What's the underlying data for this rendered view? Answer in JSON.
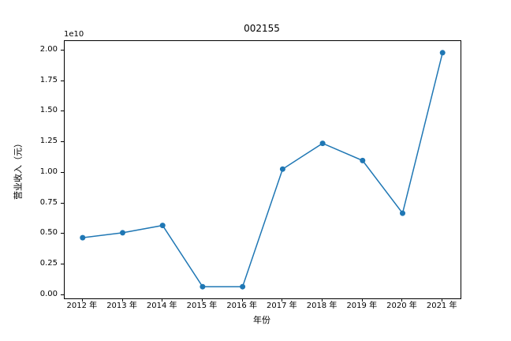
{
  "figure": {
    "background_color": "#ffffff",
    "text_color": "#000000",
    "spine_color": "#000000"
  },
  "chart_data": {
    "type": "line",
    "title": "002155",
    "xlabel": "年份",
    "ylabel": "营业收入（元）",
    "offset_text": "1e10",
    "x": [
      2012,
      2013,
      2014,
      2015,
      2016,
      2017,
      2018,
      2019,
      2020,
      2021
    ],
    "x_tick_labels": [
      "2012 年",
      "2013 年",
      "2014 年",
      "2015 年",
      "2016 年",
      "2017 年",
      "2018 年",
      "2019 年",
      "2020 年",
      "2021 年"
    ],
    "values_1e10": [
      0.47,
      0.51,
      0.57,
      0.07,
      0.07,
      1.03,
      1.24,
      1.1,
      0.67,
      1.98
    ],
    "values_yuan": [
      4700000000,
      5100000000,
      5700000000,
      700000000,
      700000000,
      10300000000,
      12400000000,
      11000000000,
      6700000000,
      19800000000
    ],
    "series": [
      {
        "name": "营业收入",
        "values": [
          0.47,
          0.51,
          0.57,
          0.07,
          0.07,
          1.03,
          1.24,
          1.1,
          0.67,
          1.98
        ]
      }
    ],
    "y_ticks": [
      0.0,
      0.25,
      0.5,
      0.75,
      1.0,
      1.25,
      1.5,
      1.75,
      2.0
    ],
    "y_tick_labels": [
      "0.00",
      "0.25",
      "0.50",
      "0.75",
      "1.00",
      "1.25",
      "1.50",
      "1.75",
      "2.00"
    ],
    "xlim": [
      2011.55,
      2021.45
    ],
    "ylim": [
      -0.0255,
      2.0755
    ],
    "grid": false,
    "legend": "none",
    "line_color": "#1f77b4",
    "marker": "circle",
    "marker_radius": 3.5,
    "line_width": 1.5
  }
}
